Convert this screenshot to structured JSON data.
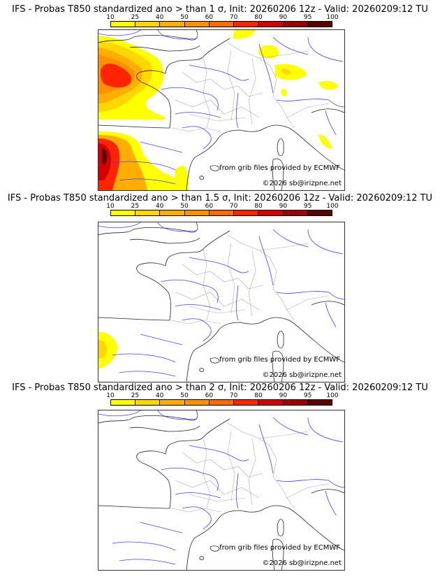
{
  "colorbar": {
    "ticks": [
      "10",
      "25",
      "40",
      "50",
      "60",
      "70",
      "80",
      "90",
      "95",
      "100"
    ],
    "colors": [
      "#ffff00",
      "#ffd700",
      "#ffae00",
      "#ff9000",
      "#ff6a00",
      "#ff2400",
      "#d40000",
      "#9c0000",
      "#5c0000"
    ]
  },
  "panels": [
    {
      "title": "IFS - Probas T850  standardized ano > than 1 σ, Init: 20260206 12z - Valid: 20260209:12 TU",
      "threshold_sigma": 1
    },
    {
      "title": "IFS - Probas T850  standardized ano > than 1.5 σ, Init: 20260206 12z - Valid: 20260209:12 TU",
      "threshold_sigma": 1.5
    },
    {
      "title": "IFS - Probas T850  standardized ano > than 2 σ, Init: 20260206 12z - Valid: 20260209:12 TU",
      "threshold_sigma": 2
    }
  ],
  "credits": {
    "source": "from grib files provided by ECMWF",
    "copyright": "©2026 sb@irizpne.net"
  }
}
